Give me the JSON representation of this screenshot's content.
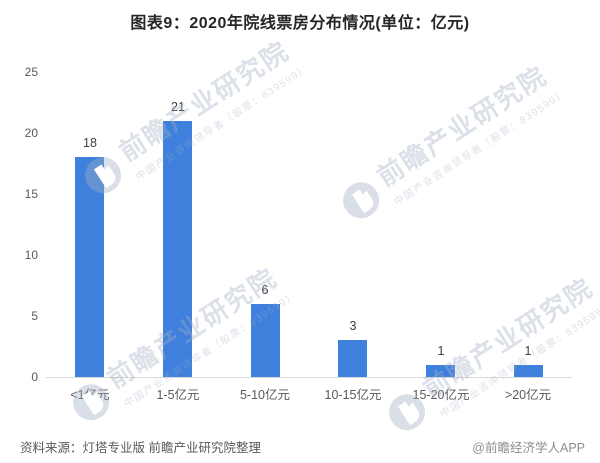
{
  "title": "图表9：2020年院线票房分布情况(单位：亿元)",
  "chart_data": {
    "type": "bar",
    "title": "图表9：2020年院线票房分布情况(单位：亿元)",
    "categories": [
      "<1亿元",
      "1-5亿元",
      "5-10亿元",
      "10-15亿元",
      "15-20亿元",
      ">20亿元"
    ],
    "values": [
      18,
      21,
      6,
      3,
      1,
      1
    ],
    "xlabel": "",
    "ylabel": "",
    "ylim": [
      0,
      25
    ],
    "yticks": [
      0,
      5,
      10,
      15,
      20,
      25
    ],
    "grid": false,
    "legend": false,
    "data_labels": true,
    "bar_color": "#3f80dc"
  },
  "watermark": {
    "brand": "前瞻产业研究院",
    "tagline": "中国产业咨询领导者（股票：839599）"
  },
  "footer": {
    "source": "资料来源：灯塔专业版 前瞻产业研究院整理",
    "credit": "@前瞻经济学人APP"
  },
  "colors": {
    "bar": "#3f80dc",
    "title_text": "#262626",
    "axis_labels": "#595959",
    "value_labels": "#404040",
    "axis_line": "#d9d9d9",
    "footer_credit": "#8e8e8e",
    "watermark": "#a3afc4"
  }
}
